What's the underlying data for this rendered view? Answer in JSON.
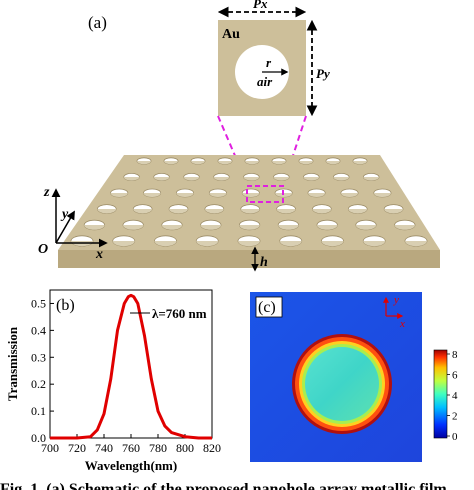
{
  "panel_a": {
    "label": "(a)",
    "unit_cell": {
      "material": "Au",
      "hole_radius_label": "r",
      "hole_medium": "air",
      "period_x_label": "Px",
      "period_y_label": "Py"
    },
    "axes": {
      "z": "z",
      "y": "y",
      "x": "x",
      "origin": "O"
    },
    "thickness_label": "h",
    "colors": {
      "gold_film": "#cdbf9a",
      "gold_side": "#b9a87f",
      "hole": "#ffffff",
      "highlight": "#e020e0"
    }
  },
  "panel_b": {
    "label": "(b)",
    "annotation": "λ=760 nm",
    "chart_data": {
      "type": "line",
      "xlabel": "Wavelength(nm)",
      "ylabel": "Transmission",
      "xlim": [
        700,
        820
      ],
      "ylim": [
        0.0,
        0.55
      ],
      "xticks": [
        "700",
        "720",
        "740",
        "760",
        "780",
        "800",
        "820"
      ],
      "yticks": [
        "0.0",
        "0.1",
        "0.2",
        "0.3",
        "0.4",
        "0.5"
      ],
      "series": [
        {
          "color": "#e00000",
          "x": [
            700,
            710,
            720,
            730,
            735,
            740,
            745,
            750,
            755,
            758,
            760,
            762,
            765,
            770,
            775,
            780,
            785,
            790,
            800,
            810,
            820
          ],
          "y": [
            0.0,
            0.0,
            0.0,
            0.005,
            0.03,
            0.09,
            0.22,
            0.4,
            0.5,
            0.525,
            0.53,
            0.525,
            0.5,
            0.38,
            0.22,
            0.1,
            0.045,
            0.02,
            0.005,
            0.0,
            0.0
          ]
        }
      ],
      "peak": {
        "x": 760,
        "y": 0.53
      }
    }
  },
  "panel_c": {
    "label": "(c)",
    "axes": {
      "y": "y",
      "x": "x"
    },
    "colorbar_ticks": [
      "8",
      "6",
      "4",
      "2",
      "0"
    ],
    "colorbar_range": [
      0,
      8
    ],
    "colors": {
      "background": "#1f4ce6",
      "ring": "#f04010",
      "center": "#3ad8c8"
    }
  },
  "caption_fragment": "Fig. 1. (a) Schematic of the proposed nanohole array metallic film"
}
